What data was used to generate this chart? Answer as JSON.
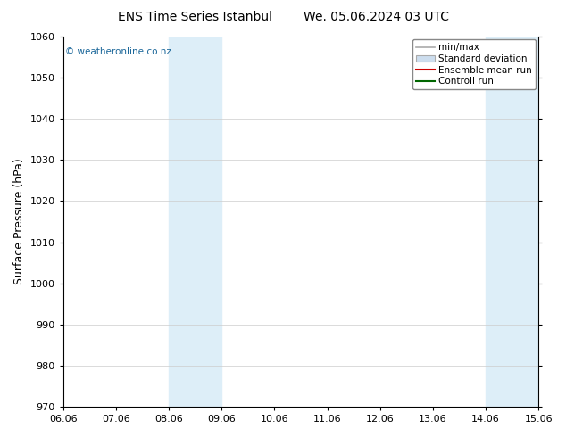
{
  "title": "ENS Time Series Istanbul        We. 05.06.2024 03 UTC",
  "ylabel": "Surface Pressure (hPa)",
  "ylim": [
    970,
    1060
  ],
  "yticks": [
    970,
    980,
    990,
    1000,
    1010,
    1020,
    1030,
    1040,
    1050,
    1060
  ],
  "x_labels": [
    "06.06",
    "07.06",
    "08.06",
    "09.06",
    "10.06",
    "11.06",
    "12.06",
    "13.06",
    "14.06",
    "15.06"
  ],
  "x_positions": [
    0,
    1,
    2,
    3,
    4,
    5,
    6,
    7,
    8,
    9
  ],
  "xlim": [
    0,
    9
  ],
  "shaded_regions": [
    {
      "xmin": 2,
      "xmax": 3,
      "color": "#ddeef8"
    },
    {
      "xmin": 8,
      "xmax": 9,
      "color": "#ddeef8"
    }
  ],
  "watermark": "© weatheronline.co.nz",
  "watermark_color": "#1a6699",
  "legend_items": [
    {
      "label": "min/max",
      "type": "line",
      "color": "#aaaaaa",
      "lw": 1.2
    },
    {
      "label": "Standard deviation",
      "type": "patch",
      "color": "#ccddee",
      "edgecolor": "#aaaaaa"
    },
    {
      "label": "Ensemble mean run",
      "type": "line",
      "color": "#cc0000",
      "lw": 1.5
    },
    {
      "label": "Controll run",
      "type": "line",
      "color": "#006600",
      "lw": 1.5
    }
  ],
  "background_color": "#ffffff",
  "plot_bg_color": "#ffffff",
  "grid_color": "#cccccc",
  "axis_color": "#000000",
  "title_fontsize": 10,
  "tick_fontsize": 8,
  "ylabel_fontsize": 9,
  "legend_fontsize": 7.5
}
